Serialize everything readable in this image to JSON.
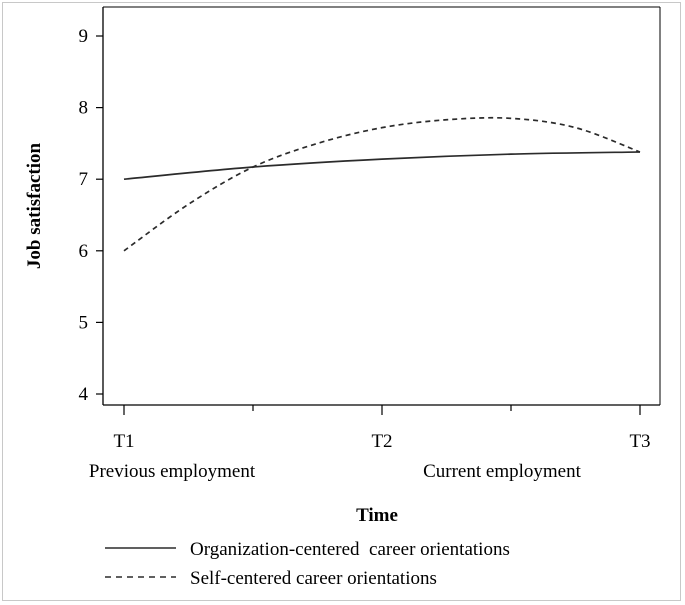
{
  "chart_data": {
    "type": "line",
    "xlabel": "Time",
    "ylabel": "Job satisfaction",
    "ylim": [
      4,
      9
    ],
    "yticks": [
      4,
      5,
      6,
      7,
      8,
      9
    ],
    "x": [
      1,
      2,
      3
    ],
    "x_tick_labels": [
      "T1",
      "T2",
      "T3"
    ],
    "x_period_labels": [
      "Previous employment",
      "Current employment"
    ],
    "grid": false,
    "legend_position": "bottom",
    "series": [
      {
        "name": "Organization-centered  career orientations",
        "style": "solid",
        "x": [
          1,
          1.5,
          2,
          2.5,
          3
        ],
        "values": [
          7.0,
          7.17,
          7.28,
          7.35,
          7.38
        ]
      },
      {
        "name": "Self-centered career orientations",
        "style": "dashed",
        "x": [
          1,
          1.25,
          1.5,
          1.75,
          2,
          2.25,
          2.5,
          2.75,
          3
        ],
        "values": [
          6.0,
          6.65,
          7.17,
          7.5,
          7.72,
          7.83,
          7.85,
          7.72,
          7.38
        ]
      }
    ],
    "colors": {
      "line": "#2b2b2b",
      "axis": "#000000"
    }
  }
}
